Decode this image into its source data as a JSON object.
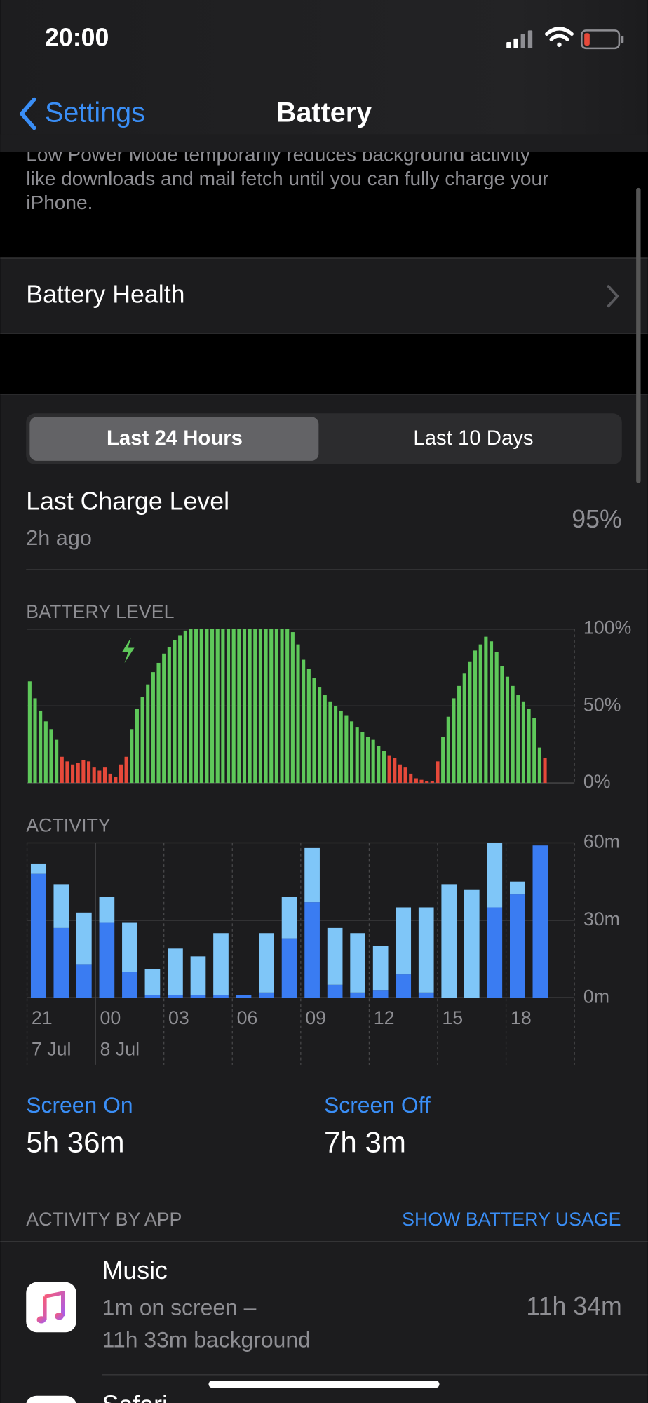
{
  "status_bar": {
    "time": "20:00"
  },
  "nav": {
    "back": "Settings",
    "title": "Battery"
  },
  "low_power_note": [
    "Low Power Mode temporarily reduces background activity",
    "like downloads and mail fetch until you can fully charge your",
    "iPhone."
  ],
  "battery_health": "Battery Health",
  "segments": [
    "Last 24 Hours",
    "Last 10 Days"
  ],
  "last_charge": {
    "label": "Last Charge Level",
    "time": "2h ago",
    "value": "95%"
  },
  "chart_data": [
    {
      "type": "bar",
      "title": "BATTERY LEVEL",
      "values": [
        66,
        55,
        47,
        40,
        35,
        28,
        17,
        14,
        12,
        13,
        15,
        14,
        10,
        8,
        10,
        6,
        4,
        12,
        17,
        35,
        48,
        56,
        64,
        72,
        78,
        84,
        88,
        93,
        96,
        99,
        100,
        100,
        100,
        100,
        100,
        100,
        100,
        100,
        100,
        100,
        100,
        100,
        100,
        100,
        100,
        100,
        100,
        100,
        100,
        98,
        90,
        80,
        74,
        68,
        62,
        57,
        53,
        50,
        47,
        44,
        40,
        36,
        33,
        30,
        28,
        24,
        21,
        18,
        16,
        12,
        10,
        6,
        3,
        2,
        1,
        1,
        14,
        30,
        43,
        55,
        63,
        71,
        79,
        86,
        90,
        95,
        92,
        85,
        76,
        69,
        63,
        57,
        53,
        48,
        42,
        23,
        16
      ],
      "color": "#5ec85a",
      "low_color": "#e6493a",
      "low_below": 20,
      "ylim": [
        0,
        100
      ],
      "yticks": [
        {
          "value": 0,
          "label": "0%"
        },
        {
          "value": 50,
          "label": "50%"
        },
        {
          "value": 100,
          "label": "100%"
        }
      ],
      "grid": true
    },
    {
      "type": "stacked_bar",
      "title": "ACTIVITY",
      "categories": [
        "21",
        null,
        null,
        "00",
        null,
        null,
        "03",
        null,
        null,
        "06",
        null,
        null,
        "09",
        null,
        null,
        "12",
        null,
        null,
        "15",
        null,
        null,
        "18",
        null,
        null
      ],
      "day_labels": [
        "7 Jul",
        "8 Jul"
      ],
      "series": [
        {
          "color": "#3a7cf2",
          "values": [
            48,
            27,
            13,
            29,
            10,
            1,
            1,
            1,
            1,
            1,
            2,
            23,
            37,
            5,
            2,
            3,
            9,
            2,
            0,
            0,
            35,
            40,
            59,
            0
          ]
        },
        {
          "color": "#7fc6f8",
          "values": [
            4,
            17,
            20,
            10,
            19,
            10,
            18,
            15,
            24,
            0,
            23,
            16,
            21,
            22,
            23,
            17,
            26,
            33,
            44,
            42,
            25,
            5,
            0,
            0
          ]
        }
      ],
      "ylim": [
        0,
        60
      ],
      "yticks": [
        {
          "value": 0,
          "label": "0m"
        },
        {
          "value": 30,
          "label": "30m"
        },
        {
          "value": 60,
          "label": "60m"
        }
      ],
      "grid": true
    }
  ],
  "screen": {
    "on_label": "Screen On",
    "on_value": "5h 36m",
    "off_label": "Screen Off",
    "off_value": "7h 3m"
  },
  "activity_by_app": {
    "title": "ACTIVITY BY APP",
    "action": "SHOW BATTERY USAGE"
  },
  "apps": [
    {
      "name": "Music",
      "detail": [
        "1m on screen –",
        "11h 33m background"
      ],
      "time": "11h 34m"
    },
    {
      "name": "Safari"
    }
  ]
}
